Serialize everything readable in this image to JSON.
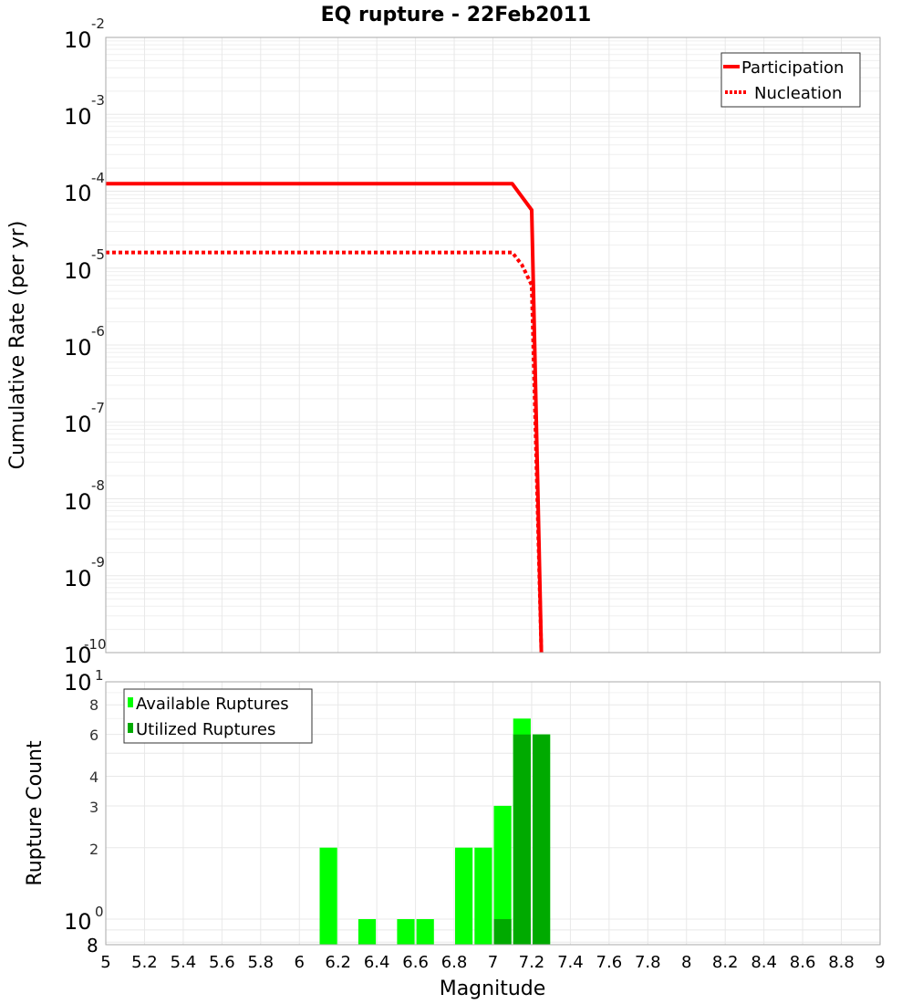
{
  "chart_data": [
    {
      "type": "line",
      "title": "EQ rupture - 22Feb2011",
      "xlabel": "",
      "ylabel": "Cumulative Rate (per yr)",
      "xlim": [
        5,
        9
      ],
      "ylim": [
        1e-10,
        0.01
      ],
      "yscale": "log",
      "y_tick_labels": [
        "10^-2",
        "10^-3",
        "10^-4",
        "10^-5",
        "10^-6",
        "10^-7",
        "10^-8",
        "10^-9",
        "10^-10"
      ],
      "grid": true,
      "legend_position": "top-right",
      "series": [
        {
          "name": "Participation",
          "style": "solid",
          "color": "#ff0000",
          "x": [
            5.0,
            7.1,
            7.2,
            7.25
          ],
          "y": [
            0.000125,
            0.000125,
            5.7e-05,
            1e-10
          ]
        },
        {
          "name": "Nucleation",
          "style": "dotted",
          "color": "#ff0000",
          "x": [
            5.0,
            7.1,
            7.15,
            7.2,
            7.25
          ],
          "y": [
            1.6e-05,
            1.6e-05,
            1.1e-05,
            6e-06,
            1e-10
          ]
        }
      ]
    },
    {
      "type": "bar",
      "title": "",
      "xlabel": "Magnitude",
      "ylabel": "Rupture Count",
      "xlim": [
        5,
        9
      ],
      "yscale": "log",
      "ylim": [
        0.78,
        10
      ],
      "y_tick_labels": [
        "10^1",
        "8",
        "6",
        "4",
        "3",
        "2",
        "10^0",
        "8"
      ],
      "x_tick_labels": [
        "5",
        "5.2",
        "5.4",
        "5.6",
        "5.8",
        "6",
        "6.2",
        "6.4",
        "6.6",
        "6.8",
        "7",
        "7.2",
        "7.4",
        "7.6",
        "7.8",
        "8",
        "8.2",
        "8.4",
        "8.6",
        "8.8",
        "9"
      ],
      "grid": true,
      "legend_position": "top-left",
      "categories": [
        "6.15",
        "6.35",
        "6.55",
        "6.65",
        "6.85",
        "6.95",
        "7.05",
        "7.15",
        "7.25"
      ],
      "series": [
        {
          "name": "Available Ruptures",
          "color": "#00ff00",
          "values": [
            2,
            1,
            1,
            1,
            2,
            2,
            3,
            7,
            6
          ]
        },
        {
          "name": "Utilized Ruptures",
          "color": "#00aa00",
          "values": [
            0,
            0,
            0,
            0,
            0,
            0,
            1,
            6,
            6
          ]
        }
      ]
    }
  ],
  "title": "EQ rupture - 22Feb2011",
  "top": {
    "ylabel": "Cumulative Rate (per yr)",
    "legend": {
      "participation": "Participation",
      "nucleation": "Nucleation"
    },
    "yticks": [
      {
        "base": "10",
        "exp": "-2"
      },
      {
        "base": "10",
        "exp": "-3"
      },
      {
        "base": "10",
        "exp": "-4"
      },
      {
        "base": "10",
        "exp": "-5"
      },
      {
        "base": "10",
        "exp": "-6"
      },
      {
        "base": "10",
        "exp": "-7"
      },
      {
        "base": "10",
        "exp": "-8"
      },
      {
        "base": "10",
        "exp": "-9"
      },
      {
        "base": "10",
        "exp": "-10"
      }
    ]
  },
  "bottom": {
    "ylabel": "Rupture Count",
    "xlabel": "Magnitude",
    "legend": {
      "available": "Available Ruptures",
      "utilized": "Utilized Ruptures"
    },
    "ytick_top": {
      "base": "10",
      "exp": "1"
    },
    "ytick_one": {
      "base": "10",
      "exp": "0"
    },
    "ytick_small": [
      "8",
      "6",
      "4",
      "3",
      "2"
    ],
    "ytick_bottom": "8",
    "xticks": [
      "5",
      "5.2",
      "5.4",
      "5.6",
      "5.8",
      "6",
      "6.2",
      "6.4",
      "6.6",
      "6.8",
      "7",
      "7.2",
      "7.4",
      "7.6",
      "7.8",
      "8",
      "8.2",
      "8.4",
      "8.6",
      "8.8",
      "9"
    ]
  },
  "colors": {
    "line": "#ff0000",
    "available": "#00ff00",
    "utilized": "#00aa00",
    "grid": "#e8e8e8",
    "frame": "#aaaaaa"
  }
}
